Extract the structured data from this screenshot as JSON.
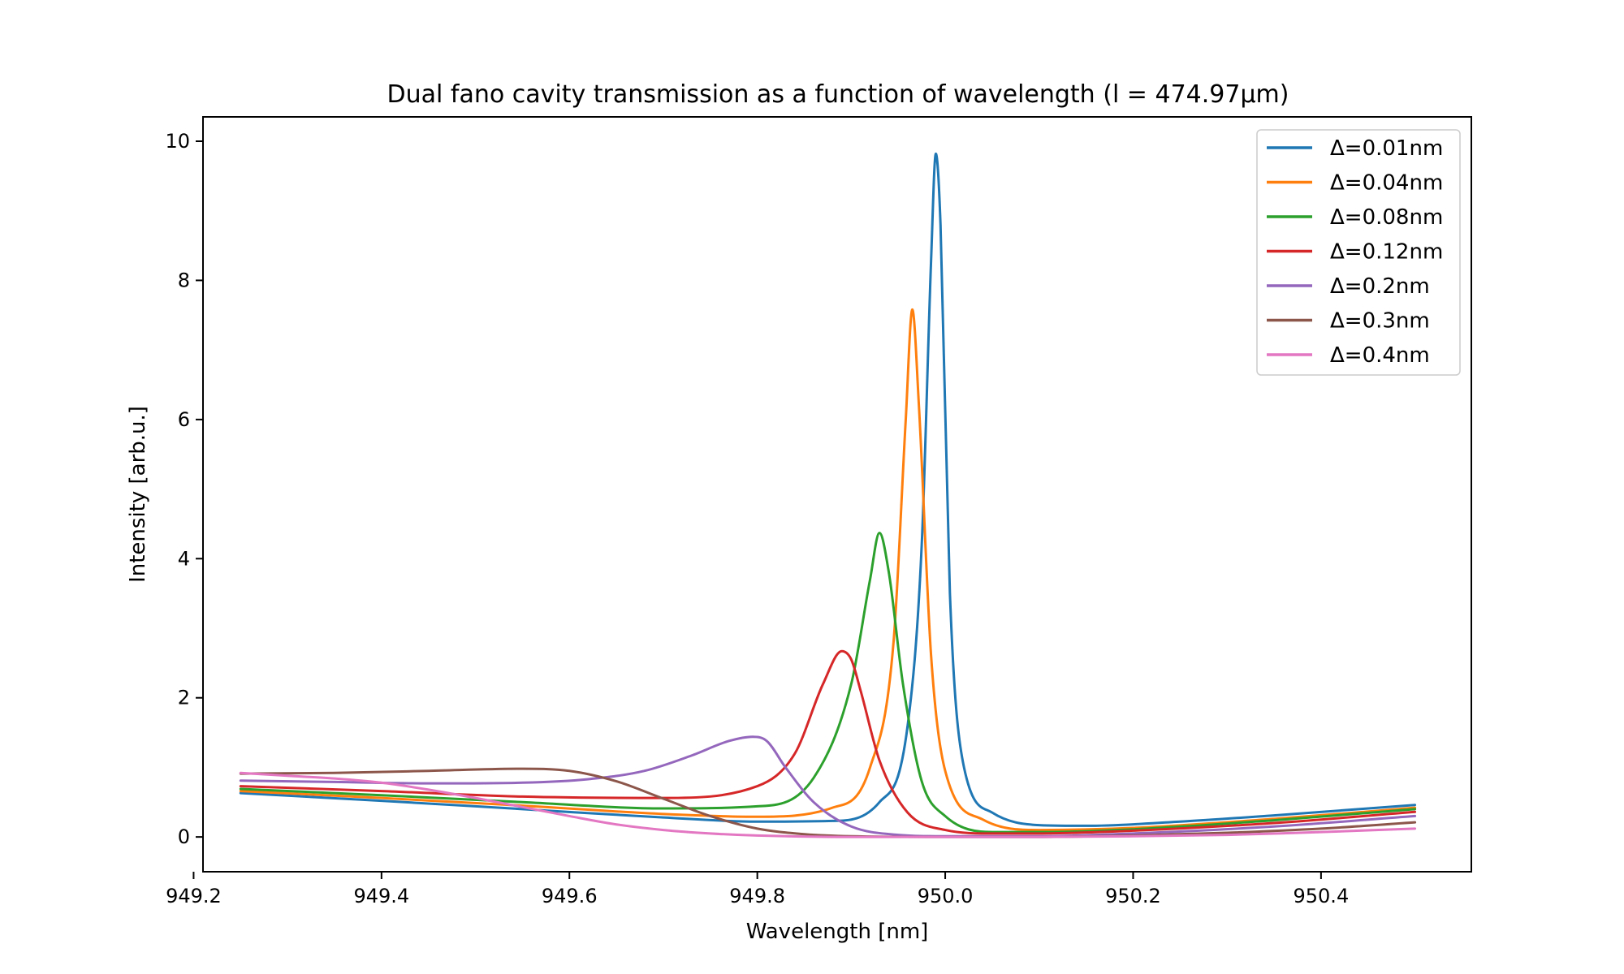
{
  "chart_data": {
    "type": "line",
    "title": "Dual fano cavity transmission as a function of wavelength (l = 474.97μm)",
    "xlabel": "Wavelength [nm]",
    "ylabel": "Intensity [arb.u.]",
    "xlim": [
      949.21,
      950.56
    ],
    "ylim": [
      -0.5,
      10.35
    ],
    "x_ticks": [
      949.2,
      949.4,
      949.6,
      949.8,
      950.0,
      950.2,
      950.4
    ],
    "x_tick_labels": [
      "949.2",
      "949.4",
      "949.6",
      "949.8",
      "950.0",
      "950.2",
      "950.4"
    ],
    "y_ticks": [
      0,
      2,
      4,
      6,
      8,
      10
    ],
    "y_tick_labels": [
      "0",
      "2",
      "4",
      "6",
      "8",
      "10"
    ],
    "grid": false,
    "legend_position": "top-right",
    "series": [
      {
        "name": "Δ=0.01nm",
        "color": "#1f77b4",
        "x": [
          949.25,
          949.4,
          949.55,
          949.7,
          949.8,
          949.88,
          949.93,
          949.96,
          949.975,
          949.985,
          949.99,
          949.995,
          950.005,
          950.02,
          950.05,
          950.1,
          950.15,
          950.25,
          950.35,
          950.5
        ],
        "y": [
          0.63,
          0.52,
          0.4,
          0.28,
          0.22,
          0.23,
          0.5,
          1.6,
          4.2,
          8.3,
          9.82,
          8.8,
          3.5,
          1.0,
          0.35,
          0.17,
          0.16,
          0.22,
          0.31,
          0.46
        ]
      },
      {
        "name": "Δ=0.04nm",
        "color": "#ff7f0e",
        "x": [
          949.25,
          949.4,
          949.55,
          949.7,
          949.8,
          949.88,
          949.92,
          949.945,
          949.958,
          949.965,
          949.972,
          949.985,
          950.0,
          950.04,
          950.1,
          950.2,
          950.35,
          950.5
        ],
        "y": [
          0.66,
          0.56,
          0.45,
          0.33,
          0.29,
          0.42,
          1.0,
          2.8,
          6.0,
          7.58,
          6.2,
          2.6,
          0.95,
          0.25,
          0.1,
          0.13,
          0.26,
          0.42
        ]
      },
      {
        "name": "Δ=0.08nm",
        "color": "#2ca02c",
        "x": [
          949.25,
          949.4,
          949.55,
          949.7,
          949.8,
          949.86,
          949.9,
          949.92,
          949.93,
          949.94,
          949.955,
          949.975,
          950.0,
          950.05,
          950.1,
          950.2,
          950.35,
          950.5
        ],
        "y": [
          0.69,
          0.6,
          0.5,
          0.41,
          0.44,
          0.85,
          2.2,
          3.7,
          4.37,
          3.8,
          2.2,
          0.8,
          0.3,
          0.07,
          0.07,
          0.11,
          0.24,
          0.4
        ]
      },
      {
        "name": "Δ=0.12nm",
        "color": "#d62728",
        "x": [
          949.25,
          949.4,
          949.55,
          949.7,
          949.8,
          949.84,
          949.87,
          949.89,
          949.9,
          949.91,
          949.93,
          949.96,
          950.0,
          950.05,
          950.1,
          950.2,
          950.35,
          950.5
        ],
        "y": [
          0.73,
          0.66,
          0.58,
          0.56,
          0.73,
          1.2,
          2.2,
          2.67,
          2.55,
          2.1,
          1.1,
          0.35,
          0.1,
          0.05,
          0.05,
          0.09,
          0.2,
          0.36
        ]
      },
      {
        "name": "Δ=0.2nm",
        "color": "#9467bd",
        "x": [
          949.25,
          949.35,
          949.45,
          949.55,
          949.62,
          949.68,
          949.73,
          949.77,
          949.795,
          949.81,
          949.83,
          949.86,
          949.9,
          949.95,
          950.0,
          950.1,
          950.2,
          950.35,
          950.5
        ],
        "y": [
          0.81,
          0.79,
          0.77,
          0.78,
          0.83,
          0.95,
          1.17,
          1.38,
          1.44,
          1.38,
          1.0,
          0.5,
          0.15,
          0.03,
          0.01,
          0.01,
          0.05,
          0.15,
          0.3
        ]
      },
      {
        "name": "Δ=0.3nm",
        "color": "#8c564b",
        "x": [
          949.25,
          949.35,
          949.45,
          949.55,
          949.6,
          949.65,
          949.7,
          949.75,
          949.8,
          949.85,
          949.9,
          950.0,
          950.1,
          950.2,
          950.3,
          950.4,
          950.5
        ],
        "y": [
          0.91,
          0.92,
          0.95,
          0.98,
          0.95,
          0.8,
          0.55,
          0.3,
          0.12,
          0.04,
          0.01,
          0.0,
          0.0,
          0.02,
          0.06,
          0.12,
          0.21
        ]
      },
      {
        "name": "Δ=0.4nm",
        "color": "#e377c2",
        "x": [
          949.25,
          949.3,
          949.35,
          949.4,
          949.45,
          949.5,
          949.55,
          949.6,
          949.65,
          949.7,
          949.75,
          949.8,
          949.9,
          950.0,
          950.1,
          950.2,
          950.3,
          950.4,
          950.5
        ],
        "y": [
          0.92,
          0.88,
          0.84,
          0.78,
          0.68,
          0.56,
          0.43,
          0.3,
          0.18,
          0.1,
          0.05,
          0.02,
          0.0,
          0.0,
          0.0,
          0.01,
          0.03,
          0.07,
          0.12
        ]
      }
    ]
  }
}
